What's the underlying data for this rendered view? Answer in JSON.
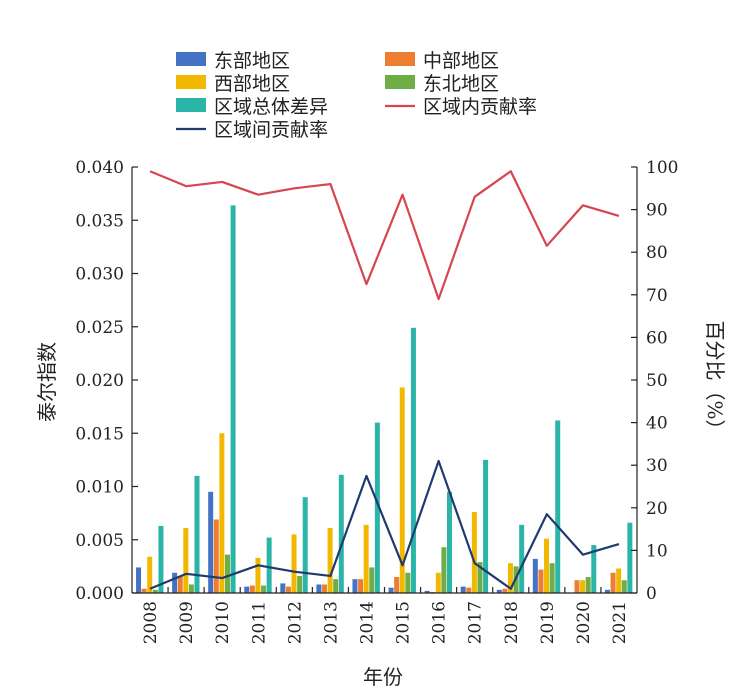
{
  "chart_data": {
    "type": "bar",
    "title": "",
    "xlabel": "年份",
    "ylabel": "泰尔指数",
    "y2label": "百分比（%）",
    "ylim": [
      0,
      0.04
    ],
    "y2lim": [
      0,
      100
    ],
    "yticks": [
      "0.000",
      "0.005",
      "0.010",
      "0.015",
      "0.020",
      "0.025",
      "0.030",
      "0.035",
      "0.040"
    ],
    "y2ticks": [
      "0",
      "10",
      "20",
      "30",
      "40",
      "50",
      "60",
      "70",
      "80",
      "90",
      "100"
    ],
    "grid": false,
    "legend": "top",
    "categories": [
      "2008",
      "2009",
      "2010",
      "2011",
      "2012",
      "2013",
      "2014",
      "2015",
      "2016",
      "2017",
      "2018",
      "2019",
      "2020",
      "2021"
    ],
    "series": [
      {
        "name": "东部地区",
        "kind": "bar",
        "axis": "left",
        "color": "#4472c4",
        "values": [
          0.0024,
          0.0019,
          0.0095,
          0.0006,
          0.0009,
          0.0008,
          0.0013,
          0.0005,
          0.0002,
          0.0006,
          0.0003,
          0.0032,
          0.0,
          0.0003
        ]
      },
      {
        "name": "中部地区",
        "kind": "bar",
        "axis": "left",
        "color": "#ed7d31",
        "values": [
          0.0004,
          0.0016,
          0.0069,
          0.0007,
          0.0006,
          0.0008,
          0.0013,
          0.0015,
          0.0001,
          0.0005,
          0.0004,
          0.0022,
          0.0012,
          0.0019
        ]
      },
      {
        "name": "西部地区",
        "kind": "bar",
        "axis": "left",
        "color": "#f2b800",
        "values": [
          0.0034,
          0.0061,
          0.015,
          0.0033,
          0.0055,
          0.0061,
          0.0064,
          0.0193,
          0.0019,
          0.0076,
          0.0028,
          0.0051,
          0.0012,
          0.0023
        ]
      },
      {
        "name": "东北地区",
        "kind": "bar",
        "axis": "left",
        "color": "#70ad47",
        "values": [
          0.0003,
          0.0008,
          0.0036,
          0.0007,
          0.0016,
          0.0013,
          0.0024,
          0.0019,
          0.0043,
          0.0029,
          0.0025,
          0.0028,
          0.0015,
          0.0012
        ]
      },
      {
        "name": "区域总体差异",
        "kind": "bar",
        "axis": "left",
        "color": "#2bb5a9",
        "values": [
          0.0063,
          0.011,
          0.0364,
          0.0052,
          0.009,
          0.0111,
          0.016,
          0.0249,
          0.0095,
          0.0125,
          0.0064,
          0.0162,
          0.0045,
          0.0066
        ]
      },
      {
        "name": "区域内贡献率",
        "kind": "line",
        "axis": "right",
        "color": "#d64550",
        "values": [
          99.0,
          95.5,
          96.5,
          93.5,
          95.0,
          96.0,
          72.5,
          93.5,
          69.0,
          93.0,
          99.0,
          81.5,
          91.0,
          88.5
        ]
      },
      {
        "name": "区域间贡献率",
        "kind": "line",
        "axis": "right",
        "color": "#1f3a6e",
        "values": [
          1.0,
          4.5,
          3.5,
          6.5,
          5.0,
          4.0,
          27.5,
          6.5,
          31.0,
          7.0,
          1.0,
          18.5,
          9.0,
          11.5
        ]
      }
    ]
  }
}
